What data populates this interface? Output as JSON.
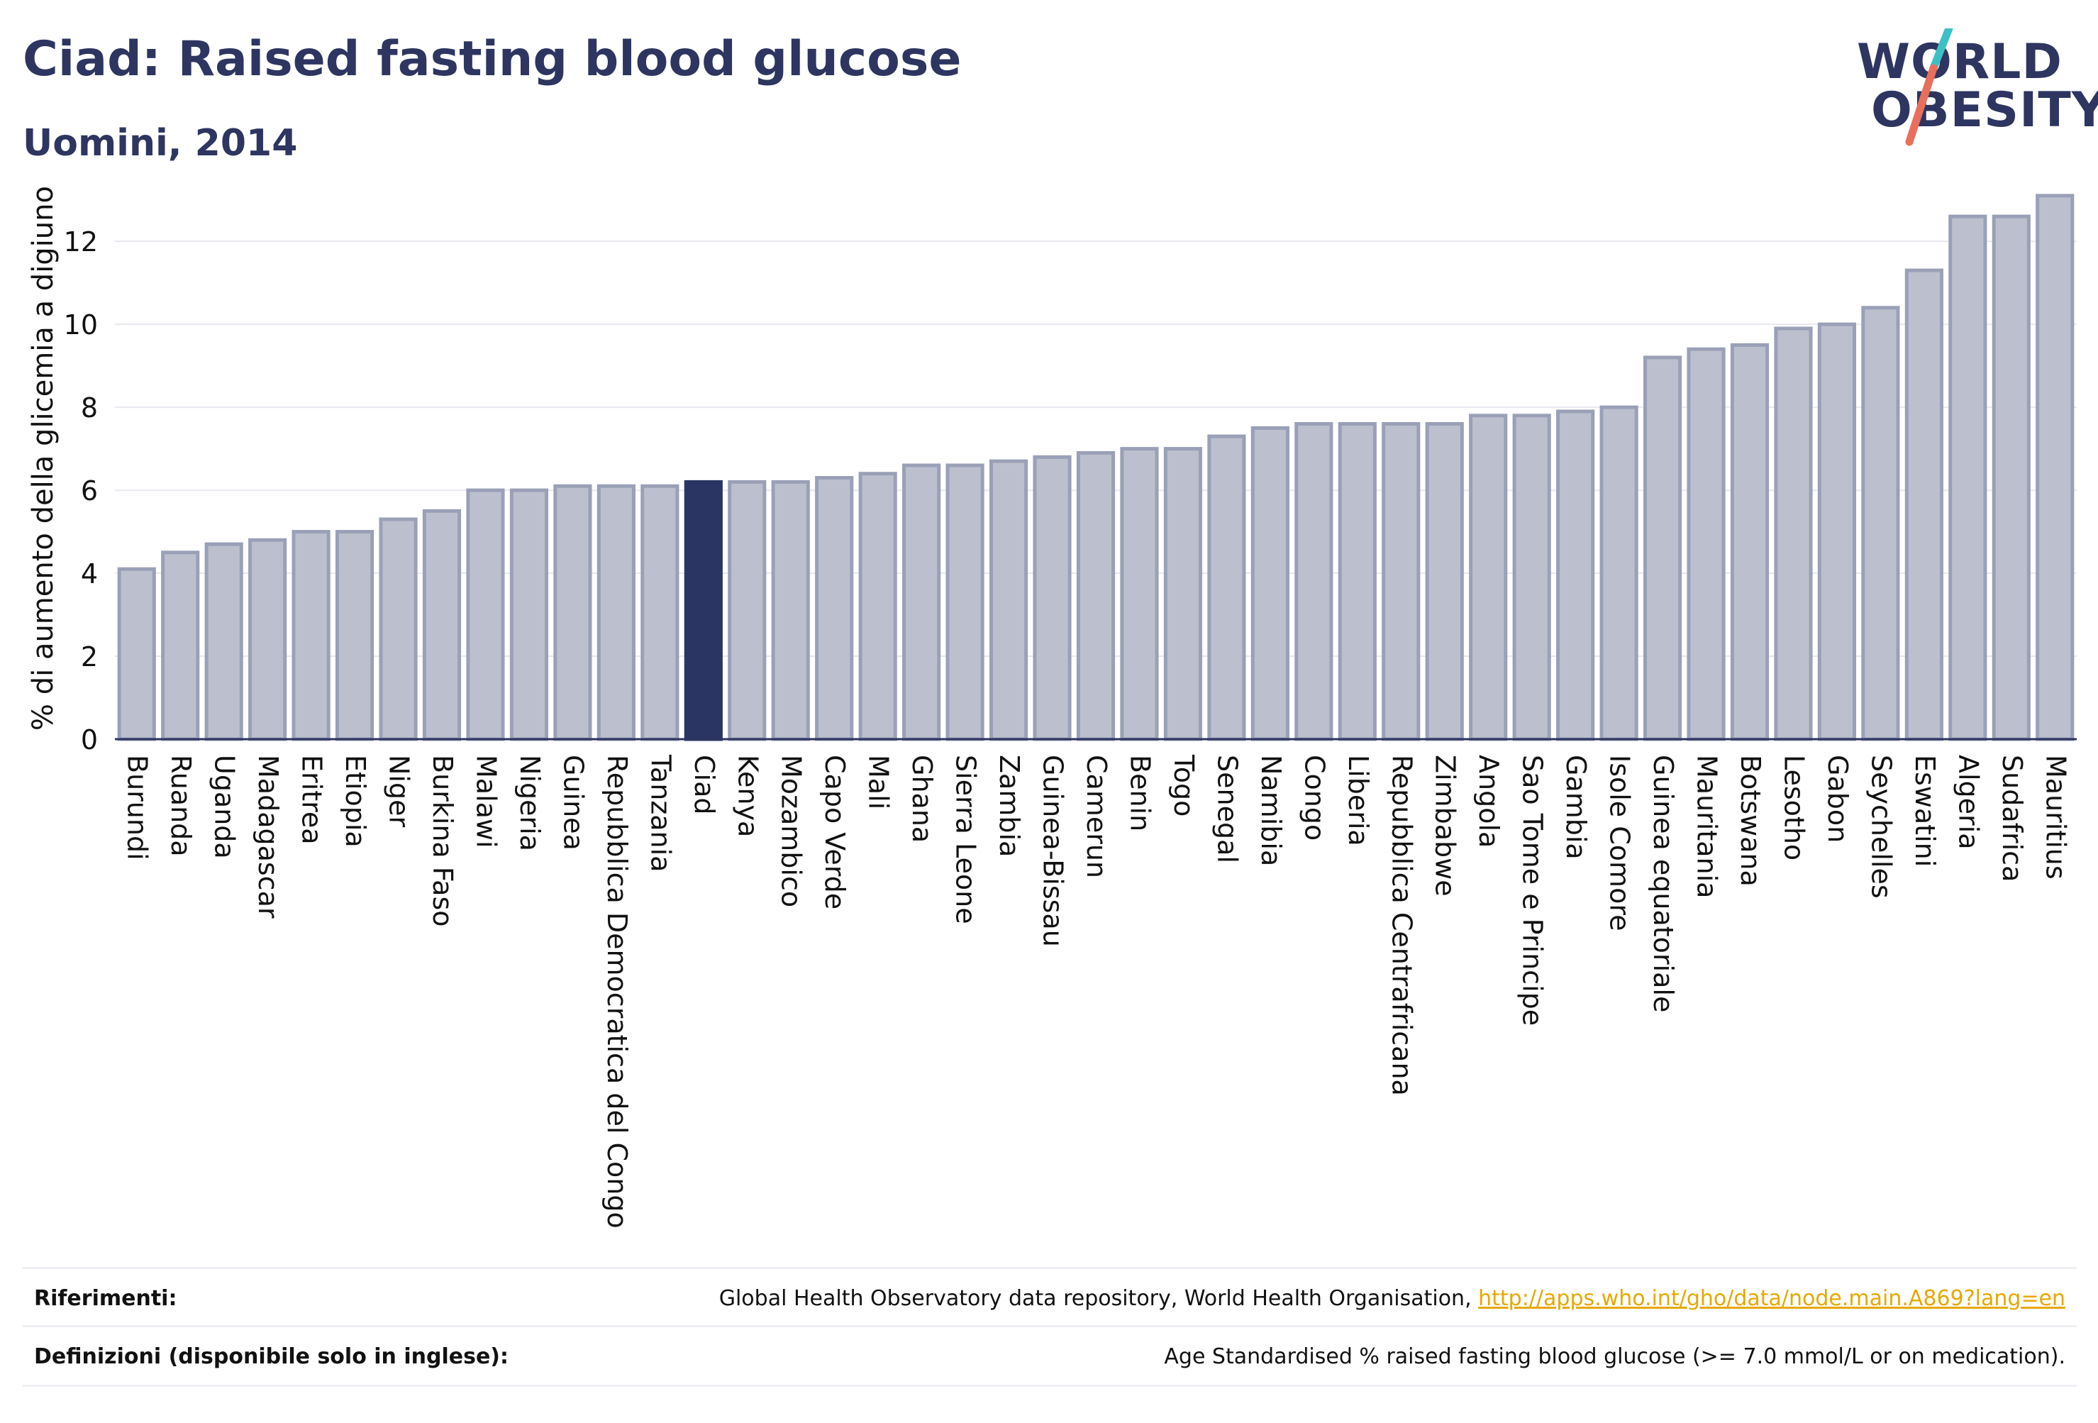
{
  "header": {
    "title": "Ciad: Raised fasting blood glucose",
    "subtitle": "Uomini, 2014"
  },
  "logo": {
    "line1": "WORLD",
    "line2": "OBESITY"
  },
  "colors": {
    "highlight": "#2b3563",
    "bar_fill": "#bcc0ce",
    "bar_stroke": "#9aa0b6",
    "axis": "#2d3560",
    "logo_teal": "#3cc0c4",
    "logo_coral": "#e86f5c"
  },
  "chart_data": {
    "type": "bar",
    "title": "Ciad: Raised fasting blood glucose",
    "subtitle": "Uomini, 2014",
    "ylabel": "% di aumento della glicemia a digiuno",
    "xlabel": "",
    "ylim": [
      0,
      13.2
    ],
    "yticks": [
      0,
      2,
      4,
      6,
      8,
      10,
      12
    ],
    "grid": true,
    "highlight": "Ciad",
    "categories": [
      "Burundi",
      "Ruanda",
      "Uganda",
      "Madagascar",
      "Eritrea",
      "Etiopia",
      "Niger",
      "Burkina Faso",
      "Malawi",
      "Nigeria",
      "Guinea",
      "Repubblica Democratica del Congo",
      "Tanzania",
      "Ciad",
      "Kenya",
      "Mozambico",
      "Capo Verde",
      "Mali",
      "Ghana",
      "Sierra Leone",
      "Zambia",
      "Guinea-Bissau",
      "Camerun",
      "Benin",
      "Togo",
      "Senegal",
      "Namibia",
      "Congo",
      "Liberia",
      "Repubblica Centrafricana",
      "Zimbabwe",
      "Angola",
      "Sao Tome e Principe",
      "Gambia",
      "Isole Comore",
      "Guinea equatoriale",
      "Mauritania",
      "Botswana",
      "Lesotho",
      "Gabon",
      "Seychelles",
      "Eswatini",
      "Algeria",
      "Sudafrica",
      "Mauritius"
    ],
    "values": [
      4.1,
      4.5,
      4.7,
      4.8,
      5.0,
      5.0,
      5.3,
      5.5,
      6.0,
      6.0,
      6.1,
      6.1,
      6.1,
      6.2,
      6.2,
      6.2,
      6.3,
      6.4,
      6.6,
      6.6,
      6.7,
      6.8,
      6.9,
      7.0,
      7.0,
      7.3,
      7.5,
      7.6,
      7.6,
      7.6,
      7.6,
      7.8,
      7.8,
      7.9,
      8.0,
      9.2,
      9.4,
      9.5,
      9.9,
      10.0,
      10.4,
      11.3,
      12.6,
      12.6,
      13.1
    ]
  },
  "footer": {
    "references_label": "Riferimenti:",
    "references_text": "Global Health Observatory data repository, World Health Organisation, ",
    "references_link": "http://apps.who.int/gho/data/node.main.A869?lang=en",
    "definitions_label": "Definizioni (disponibile solo in inglese):",
    "definitions_text": "Age Standardised % raised fasting blood glucose (>= 7.0 mmol/L or on medication)."
  }
}
